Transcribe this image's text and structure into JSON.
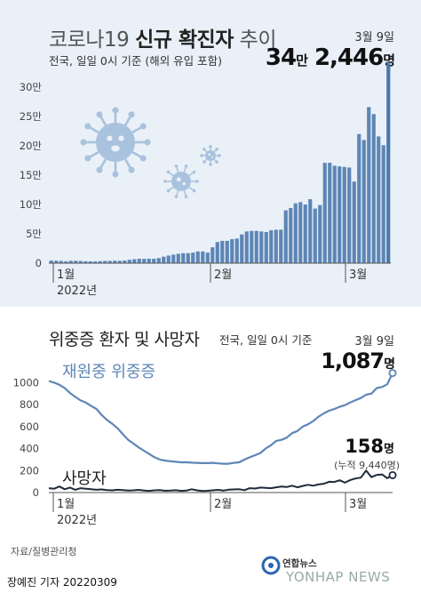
{
  "header": {
    "title_prefix": "코로나19 ",
    "title_bold": "신규 확진자",
    "title_suffix": " 추이",
    "subtitle": "전국, 일일 0시 기준 (해외 유입 포함)",
    "date": "3월 9일",
    "peak_num_a": "34",
    "peak_unit_a": "만",
    "peak_num_b": " 2,446",
    "peak_unit_b": "명"
  },
  "section2": {
    "title": "위중증 환자 및 사망자",
    "subtitle": "전국, 일일 0시 기준",
    "date": "3월 9일",
    "icu_value": "1,087",
    "icu_unit": "명",
    "icu_label": "재원중 위중증",
    "death_value": "158",
    "death_unit": "명",
    "death_cumulative": "(누적 9,440명)",
    "death_label": "사망자"
  },
  "footer": {
    "source": "자료/질병관리청",
    "credit": "장예진 기자  20220309",
    "logo_text": "연합뉴스",
    "logo_sub": "YONHAP NEWS"
  },
  "colors": {
    "panel_bg": "#e9f0f7",
    "bar": "#5d86b6",
    "bar_last": "#4a78ad",
    "icu_line": "#5d86b6",
    "death_line": "#1f2a3a",
    "virus": "#a9c2dd"
  },
  "icons": [
    "virus-icon-large",
    "virus-icon-medium",
    "virus-icon-small",
    "yonhap-logo-icon"
  ],
  "chart_data": [
    {
      "type": "bar",
      "title": "코로나19 신규 확진자 추이",
      "unit": "만",
      "x_labels": [
        "1월\n2022년",
        "2월",
        "3월"
      ],
      "y_ticks": [
        "0",
        "5만",
        "10만",
        "15만",
        "20만",
        "25만",
        "30만"
      ],
      "ylim": [
        0,
        350000
      ],
      "grid": false,
      "values": [
        4400,
        4100,
        3800,
        3100,
        4000,
        4100,
        3700,
        3200,
        3000,
        3000,
        3400,
        3800,
        3900,
        4200,
        4000,
        4500,
        5800,
        6700,
        7500,
        7400,
        7600,
        7600,
        8600,
        11000,
        13000,
        14500,
        16000,
        17000,
        17000,
        18000,
        20000,
        20000,
        18000,
        27000,
        36000,
        38000,
        38000,
        41000,
        42000,
        49000,
        54000,
        55000,
        55000,
        54000,
        53000,
        56000,
        57000,
        57000,
        90000,
        94000,
        102000,
        104000,
        100000,
        109000,
        93000,
        99000,
        171000,
        171000,
        166000,
        165000,
        164000,
        163000,
        139000,
        220000,
        210000,
        266000,
        254000,
        216000,
        201000,
        342446
      ]
    },
    {
      "type": "line",
      "title": "위중증 환자 및 사망자",
      "x_labels": [
        "1월\n2022년",
        "2월",
        "3월"
      ],
      "y_ticks": [
        0,
        200,
        400,
        600,
        800,
        1000
      ],
      "ylim": [
        0,
        1100
      ],
      "series": [
        {
          "name": "재원중 위중증",
          "values": [
            1015,
            1000,
            980,
            950,
            905,
            870,
            838,
            818,
            788,
            760,
            705,
            660,
            625,
            585,
            530,
            480,
            445,
            410,
            380,
            350,
            320,
            300,
            290,
            285,
            280,
            275,
            275,
            272,
            270,
            268,
            268,
            270,
            265,
            262,
            262,
            270,
            275,
            300,
            320,
            340,
            360,
            400,
            430,
            470,
            480,
            500,
            540,
            560,
            600,
            620,
            650,
            690,
            720,
            745,
            760,
            780,
            795,
            820,
            840,
            860,
            890,
            900,
            950,
            960,
            985,
            1087
          ]
        },
        {
          "name": "사망자",
          "values": [
            40,
            35,
            55,
            30,
            45,
            25,
            40,
            35,
            30,
            25,
            28,
            22,
            20,
            25,
            22,
            18,
            20,
            24,
            18,
            15,
            20,
            22,
            16,
            18,
            21,
            15,
            18,
            30,
            20,
            14,
            16,
            20,
            24,
            18,
            26,
            28,
            30,
            22,
            40,
            36,
            45,
            42,
            40,
            48,
            54,
            50,
            62,
            48,
            60,
            70,
            62,
            74,
            80,
            98,
            96,
            112,
            90,
            114,
            128,
            136,
            200,
            140,
            160,
            165,
            130,
            158
          ]
        }
      ]
    }
  ]
}
